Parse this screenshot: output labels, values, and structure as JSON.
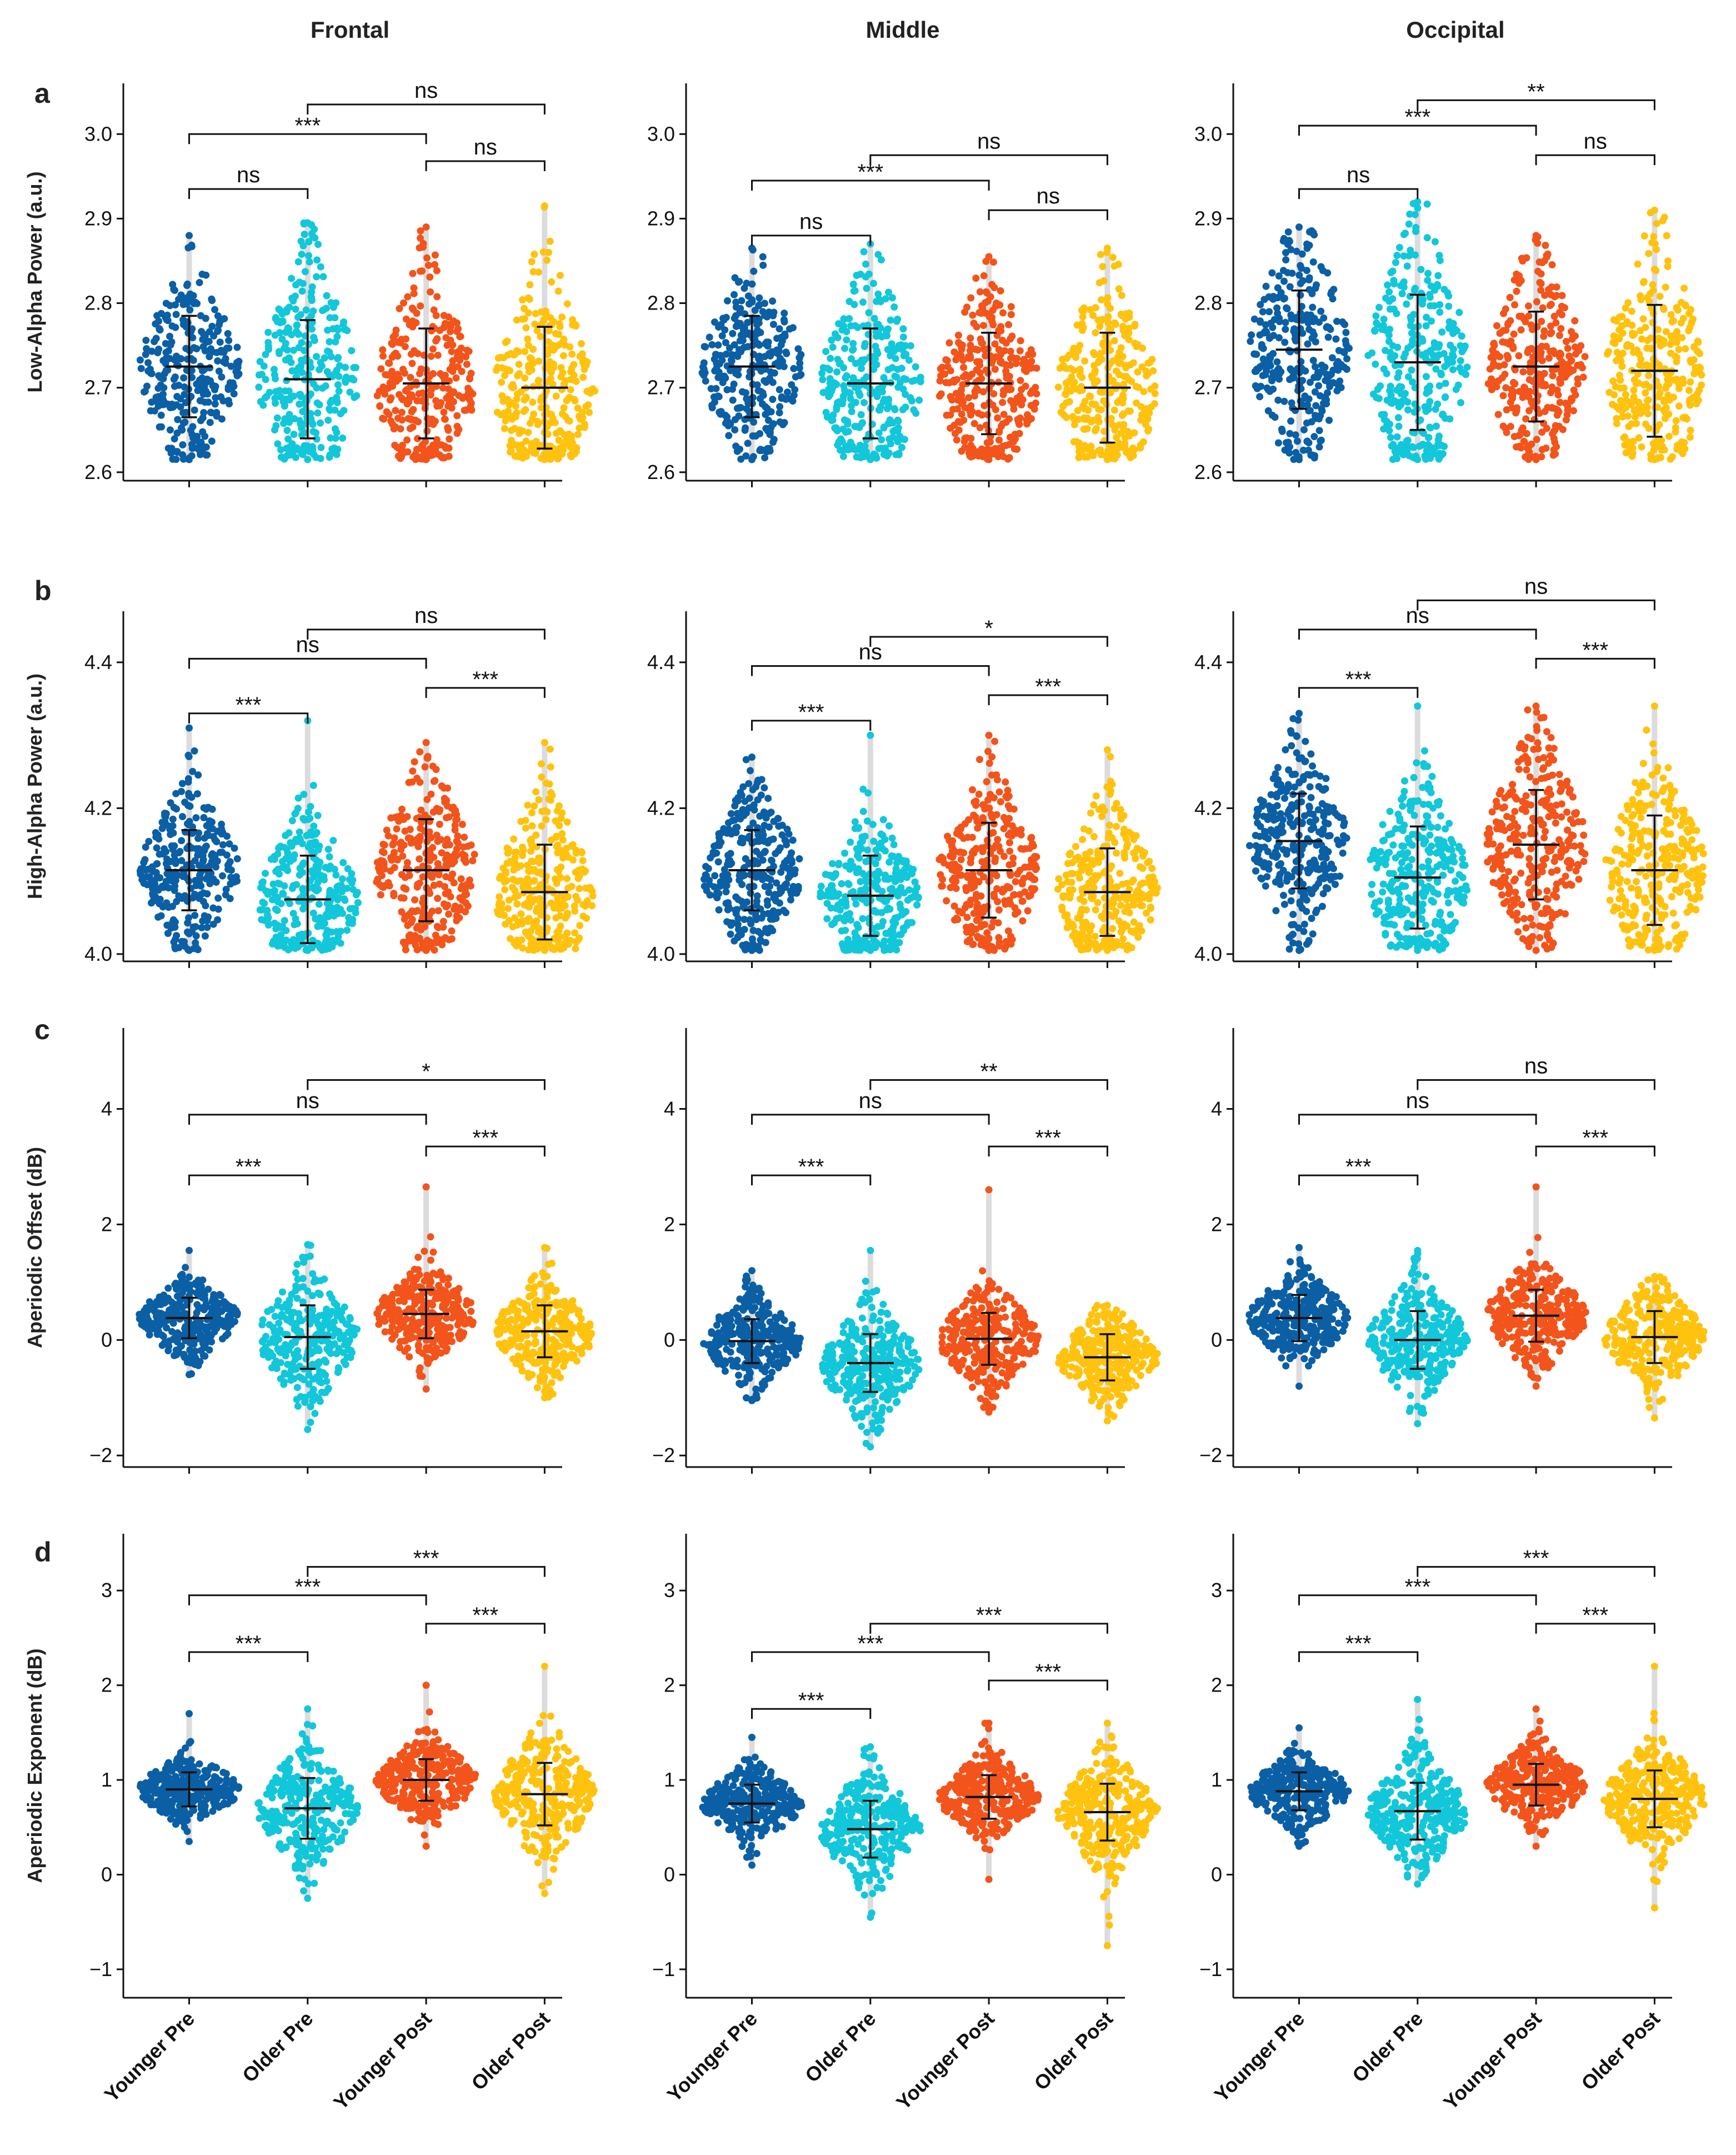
{
  "figure": {
    "column_titles": [
      "Frontal",
      "Middle",
      "Occipital"
    ],
    "row_letters": [
      "a",
      "b",
      "c",
      "d"
    ],
    "group_colors": [
      "#0B5FA5",
      "#12C7D9",
      "#F2541B",
      "#FFC20E"
    ]
  },
  "chart_data": [
    {
      "type": "scatter",
      "panel": "a",
      "region": "Frontal",
      "ylabel": "Low-Alpha Power (a.u.)",
      "ylim": [
        2.59,
        3.06
      ],
      "yticks": [
        2.6,
        2.7,
        2.8,
        2.9,
        3.0
      ],
      "categories": [
        "Younger Pre",
        "Older Pre",
        "Younger Post",
        "Older Post"
      ],
      "series": [
        {
          "name": "Younger Pre",
          "mean": 2.725,
          "sd": 0.06,
          "min": 2.615,
          "max": 2.88
        },
        {
          "name": "Older Pre",
          "mean": 2.71,
          "sd": 0.07,
          "min": 2.615,
          "max": 2.895
        },
        {
          "name": "Younger Post",
          "mean": 2.705,
          "sd": 0.065,
          "min": 2.615,
          "max": 2.89
        },
        {
          "name": "Older Post",
          "mean": 2.7,
          "sd": 0.072,
          "min": 2.615,
          "max": 2.915
        }
      ],
      "comparisons": [
        {
          "from": 0,
          "to": 1,
          "label": "ns",
          "y": 2.935
        },
        {
          "from": 2,
          "to": 3,
          "label": "ns",
          "y": 2.968
        },
        {
          "from": 0,
          "to": 2,
          "label": "***",
          "y": 3.0
        },
        {
          "from": 1,
          "to": 3,
          "label": "ns",
          "y": 3.035
        }
      ]
    },
    {
      "type": "scatter",
      "panel": "a",
      "region": "Middle",
      "ylabel": "",
      "ylim": [
        2.59,
        3.06
      ],
      "yticks": [
        2.6,
        2.7,
        2.8,
        2.9,
        3.0
      ],
      "categories": [
        "Younger Pre",
        "Older Pre",
        "Younger Post",
        "Older Post"
      ],
      "series": [
        {
          "name": "Younger Pre",
          "mean": 2.725,
          "sd": 0.06,
          "min": 2.615,
          "max": 2.865
        },
        {
          "name": "Older Pre",
          "mean": 2.705,
          "sd": 0.065,
          "min": 2.615,
          "max": 2.87
        },
        {
          "name": "Younger Post",
          "mean": 2.705,
          "sd": 0.06,
          "min": 2.615,
          "max": 2.855
        },
        {
          "name": "Older Post",
          "mean": 2.7,
          "sd": 0.065,
          "min": 2.615,
          "max": 2.865
        }
      ],
      "comparisons": [
        {
          "from": 0,
          "to": 1,
          "label": "ns",
          "y": 2.88
        },
        {
          "from": 2,
          "to": 3,
          "label": "ns",
          "y": 2.91
        },
        {
          "from": 0,
          "to": 2,
          "label": "***",
          "y": 2.945
        },
        {
          "from": 1,
          "to": 3,
          "label": "ns",
          "y": 2.975
        }
      ]
    },
    {
      "type": "scatter",
      "panel": "a",
      "region": "Occipital",
      "ylabel": "",
      "ylim": [
        2.59,
        3.06
      ],
      "yticks": [
        2.6,
        2.7,
        2.8,
        2.9,
        3.0
      ],
      "categories": [
        "Younger Pre",
        "Older Pre",
        "Younger Post",
        "Older Post"
      ],
      "series": [
        {
          "name": "Younger Pre",
          "mean": 2.745,
          "sd": 0.07,
          "min": 2.615,
          "max": 2.89
        },
        {
          "name": "Older Pre",
          "mean": 2.73,
          "sd": 0.08,
          "min": 2.615,
          "max": 2.92
        },
        {
          "name": "Younger Post",
          "mean": 2.725,
          "sd": 0.065,
          "min": 2.615,
          "max": 2.88
        },
        {
          "name": "Older Post",
          "mean": 2.72,
          "sd": 0.078,
          "min": 2.615,
          "max": 2.91
        }
      ],
      "comparisons": [
        {
          "from": 0,
          "to": 1,
          "label": "ns",
          "y": 2.935
        },
        {
          "from": 2,
          "to": 3,
          "label": "ns",
          "y": 2.975
        },
        {
          "from": 0,
          "to": 2,
          "label": "***",
          "y": 3.01
        },
        {
          "from": 1,
          "to": 3,
          "label": "**",
          "y": 3.04
        }
      ]
    },
    {
      "type": "scatter",
      "panel": "b",
      "region": "Frontal",
      "ylabel": "High-Alpha Power (a.u.)",
      "ylim": [
        3.99,
        4.47
      ],
      "yticks": [
        4.0,
        4.2,
        4.4
      ],
      "categories": [
        "Younger Pre",
        "Older Pre",
        "Younger Post",
        "Older Post"
      ],
      "series": [
        {
          "name": "Younger Pre",
          "mean": 4.115,
          "sd": 0.055,
          "min": 4.005,
          "max": 4.31
        },
        {
          "name": "Older Pre",
          "mean": 4.075,
          "sd": 0.06,
          "min": 4.005,
          "max": 4.32
        },
        {
          "name": "Younger Post",
          "mean": 4.115,
          "sd": 0.07,
          "min": 4.005,
          "max": 4.29
        },
        {
          "name": "Older Post",
          "mean": 4.085,
          "sd": 0.065,
          "min": 4.005,
          "max": 4.29
        }
      ],
      "comparisons": [
        {
          "from": 0,
          "to": 1,
          "label": "***",
          "y": 4.33
        },
        {
          "from": 2,
          "to": 3,
          "label": "***",
          "y": 4.365
        },
        {
          "from": 0,
          "to": 2,
          "label": "ns",
          "y": 4.405
        },
        {
          "from": 1,
          "to": 3,
          "label": "ns",
          "y": 4.445
        }
      ]
    },
    {
      "type": "scatter",
      "panel": "b",
      "region": "Middle",
      "ylabel": "",
      "ylim": [
        3.99,
        4.47
      ],
      "yticks": [
        4.0,
        4.2,
        4.4
      ],
      "categories": [
        "Younger Pre",
        "Older Pre",
        "Younger Post",
        "Older Post"
      ],
      "series": [
        {
          "name": "Younger Pre",
          "mean": 4.115,
          "sd": 0.055,
          "min": 4.005,
          "max": 4.27
        },
        {
          "name": "Older Pre",
          "mean": 4.08,
          "sd": 0.055,
          "min": 4.005,
          "max": 4.3
        },
        {
          "name": "Younger Post",
          "mean": 4.115,
          "sd": 0.065,
          "min": 4.005,
          "max": 4.3
        },
        {
          "name": "Older Post",
          "mean": 4.085,
          "sd": 0.06,
          "min": 4.005,
          "max": 4.28
        }
      ],
      "comparisons": [
        {
          "from": 0,
          "to": 1,
          "label": "***",
          "y": 4.32
        },
        {
          "from": 2,
          "to": 3,
          "label": "***",
          "y": 4.355
        },
        {
          "from": 0,
          "to": 2,
          "label": "ns",
          "y": 4.395
        },
        {
          "from": 1,
          "to": 3,
          "label": "*",
          "y": 4.435
        }
      ]
    },
    {
      "type": "scatter",
      "panel": "b",
      "region": "Occipital",
      "ylabel": "",
      "ylim": [
        3.99,
        4.47
      ],
      "yticks": [
        4.0,
        4.2,
        4.4
      ],
      "categories": [
        "Younger Pre",
        "Older Pre",
        "Younger Post",
        "Older Post"
      ],
      "series": [
        {
          "name": "Younger Pre",
          "mean": 4.155,
          "sd": 0.065,
          "min": 4.005,
          "max": 4.33
        },
        {
          "name": "Older Pre",
          "mean": 4.105,
          "sd": 0.07,
          "min": 4.005,
          "max": 4.34
        },
        {
          "name": "Younger Post",
          "mean": 4.15,
          "sd": 0.075,
          "min": 4.005,
          "max": 4.34
        },
        {
          "name": "Older Post",
          "mean": 4.115,
          "sd": 0.075,
          "min": 4.005,
          "max": 4.34
        }
      ],
      "comparisons": [
        {
          "from": 0,
          "to": 1,
          "label": "***",
          "y": 4.365
        },
        {
          "from": 2,
          "to": 3,
          "label": "***",
          "y": 4.405
        },
        {
          "from": 0,
          "to": 2,
          "label": "ns",
          "y": 4.445
        },
        {
          "from": 1,
          "to": 3,
          "label": "ns",
          "y": 4.485
        }
      ]
    },
    {
      "type": "scatter",
      "panel": "c",
      "region": "Frontal",
      "ylabel": "Aperiodic Offset (dB)",
      "ylim": [
        -2.2,
        5.4
      ],
      "yticks": [
        -2,
        0,
        2,
        4
      ],
      "categories": [
        "Younger Pre",
        "Older Pre",
        "Younger Post",
        "Older Post"
      ],
      "series": [
        {
          "name": "Younger Pre",
          "mean": 0.38,
          "sd": 0.35,
          "min": -0.6,
          "max": 1.55
        },
        {
          "name": "Older Pre",
          "mean": 0.05,
          "sd": 0.55,
          "min": -1.55,
          "max": 1.65
        },
        {
          "name": "Younger Post",
          "mean": 0.45,
          "sd": 0.42,
          "min": -0.85,
          "max": 2.65
        },
        {
          "name": "Older Post",
          "mean": 0.15,
          "sd": 0.45,
          "min": -1.0,
          "max": 1.6
        }
      ],
      "comparisons": [
        {
          "from": 0,
          "to": 1,
          "label": "***",
          "y": 2.85
        },
        {
          "from": 2,
          "to": 3,
          "label": "***",
          "y": 3.35
        },
        {
          "from": 0,
          "to": 2,
          "label": "ns",
          "y": 3.9
        },
        {
          "from": 1,
          "to": 3,
          "label": "*",
          "y": 4.5
        }
      ]
    },
    {
      "type": "scatter",
      "panel": "c",
      "region": "Middle",
      "ylabel": "",
      "ylim": [
        -2.2,
        5.4
      ],
      "yticks": [
        -2,
        0,
        2,
        4
      ],
      "categories": [
        "Younger Pre",
        "Older Pre",
        "Younger Post",
        "Older Post"
      ],
      "series": [
        {
          "name": "Younger Pre",
          "mean": -0.02,
          "sd": 0.38,
          "min": -1.05,
          "max": 1.2
        },
        {
          "name": "Older Pre",
          "mean": -0.4,
          "sd": 0.5,
          "min": -1.85,
          "max": 1.55
        },
        {
          "name": "Younger Post",
          "mean": 0.02,
          "sd": 0.45,
          "min": -1.25,
          "max": 2.6
        },
        {
          "name": "Older Post",
          "mean": -0.3,
          "sd": 0.4,
          "min": -1.4,
          "max": 0.6
        }
      ],
      "comparisons": [
        {
          "from": 0,
          "to": 1,
          "label": "***",
          "y": 2.85
        },
        {
          "from": 2,
          "to": 3,
          "label": "***",
          "y": 3.35
        },
        {
          "from": 0,
          "to": 2,
          "label": "ns",
          "y": 3.9
        },
        {
          "from": 1,
          "to": 3,
          "label": "**",
          "y": 4.5
        }
      ]
    },
    {
      "type": "scatter",
      "panel": "c",
      "region": "Occipital",
      "ylabel": "",
      "ylim": [
        -2.2,
        5.4
      ],
      "yticks": [
        -2,
        0,
        2,
        4
      ],
      "categories": [
        "Younger Pre",
        "Older Pre",
        "Younger Post",
        "Older Post"
      ],
      "series": [
        {
          "name": "Younger Pre",
          "mean": 0.38,
          "sd": 0.4,
          "min": -0.8,
          "max": 1.6
        },
        {
          "name": "Older Pre",
          "mean": 0.0,
          "sd": 0.5,
          "min": -1.45,
          "max": 1.55
        },
        {
          "name": "Younger Post",
          "mean": 0.42,
          "sd": 0.45,
          "min": -0.8,
          "max": 2.65
        },
        {
          "name": "Older Post",
          "mean": 0.05,
          "sd": 0.45,
          "min": -1.35,
          "max": 1.1
        }
      ],
      "comparisons": [
        {
          "from": 0,
          "to": 1,
          "label": "***",
          "y": 2.85
        },
        {
          "from": 2,
          "to": 3,
          "label": "***",
          "y": 3.35
        },
        {
          "from": 0,
          "to": 2,
          "label": "ns",
          "y": 3.9
        },
        {
          "from": 1,
          "to": 3,
          "label": "ns",
          "y": 4.5
        }
      ]
    },
    {
      "type": "scatter",
      "panel": "d",
      "region": "Frontal",
      "ylabel": "Aperiodic Exponent (dB)",
      "ylim": [
        -1.3,
        3.6
      ],
      "yticks": [
        -1,
        0,
        1,
        2,
        3
      ],
      "categories": [
        "Younger Pre",
        "Older Pre",
        "Younger Post",
        "Older Post"
      ],
      "series": [
        {
          "name": "Younger Pre",
          "mean": 0.9,
          "sd": 0.18,
          "min": 0.35,
          "max": 1.7
        },
        {
          "name": "Older Pre",
          "mean": 0.7,
          "sd": 0.32,
          "min": -0.25,
          "max": 1.75
        },
        {
          "name": "Younger Post",
          "mean": 1.0,
          "sd": 0.22,
          "min": 0.3,
          "max": 2.0
        },
        {
          "name": "Older Post",
          "mean": 0.85,
          "sd": 0.33,
          "min": -0.2,
          "max": 2.2
        }
      ],
      "comparisons": [
        {
          "from": 0,
          "to": 1,
          "label": "***",
          "y": 2.35
        },
        {
          "from": 2,
          "to": 3,
          "label": "***",
          "y": 2.65
        },
        {
          "from": 0,
          "to": 2,
          "label": "***",
          "y": 2.95
        },
        {
          "from": 1,
          "to": 3,
          "label": "***",
          "y": 3.25
        }
      ]
    },
    {
      "type": "scatter",
      "panel": "d",
      "region": "Middle",
      "ylabel": "",
      "ylim": [
        -1.3,
        3.6
      ],
      "yticks": [
        -1,
        0,
        1,
        2,
        3
      ],
      "categories": [
        "Younger Pre",
        "Older Pre",
        "Younger Post",
        "Older Post"
      ],
      "series": [
        {
          "name": "Younger Pre",
          "mean": 0.75,
          "sd": 0.2,
          "min": 0.1,
          "max": 1.45
        },
        {
          "name": "Older Pre",
          "mean": 0.48,
          "sd": 0.3,
          "min": -0.45,
          "max": 1.35
        },
        {
          "name": "Younger Post",
          "mean": 0.82,
          "sd": 0.23,
          "min": -0.05,
          "max": 1.6
        },
        {
          "name": "Older Post",
          "mean": 0.66,
          "sd": 0.3,
          "min": -0.75,
          "max": 1.6
        }
      ],
      "comparisons": [
        {
          "from": 0,
          "to": 1,
          "label": "***",
          "y": 1.75
        },
        {
          "from": 2,
          "to": 3,
          "label": "***",
          "y": 2.05
        },
        {
          "from": 0,
          "to": 2,
          "label": "***",
          "y": 2.35
        },
        {
          "from": 1,
          "to": 3,
          "label": "***",
          "y": 2.65
        }
      ]
    },
    {
      "type": "scatter",
      "panel": "d",
      "region": "Occipital",
      "ylabel": "",
      "ylim": [
        -1.3,
        3.6
      ],
      "yticks": [
        -1,
        0,
        1,
        2,
        3
      ],
      "categories": [
        "Younger Pre",
        "Older Pre",
        "Younger Post",
        "Older Post"
      ],
      "series": [
        {
          "name": "Younger Pre",
          "mean": 0.88,
          "sd": 0.2,
          "min": 0.3,
          "max": 1.55
        },
        {
          "name": "Older Pre",
          "mean": 0.67,
          "sd": 0.3,
          "min": -0.1,
          "max": 1.85
        },
        {
          "name": "Younger Post",
          "mean": 0.95,
          "sd": 0.22,
          "min": 0.3,
          "max": 1.75
        },
        {
          "name": "Older Post",
          "mean": 0.8,
          "sd": 0.3,
          "min": -0.35,
          "max": 2.2
        }
      ],
      "comparisons": [
        {
          "from": 0,
          "to": 1,
          "label": "***",
          "y": 2.35
        },
        {
          "from": 2,
          "to": 3,
          "label": "***",
          "y": 2.65
        },
        {
          "from": 0,
          "to": 2,
          "label": "***",
          "y": 2.95
        },
        {
          "from": 1,
          "to": 3,
          "label": "***",
          "y": 3.25
        }
      ]
    }
  ]
}
